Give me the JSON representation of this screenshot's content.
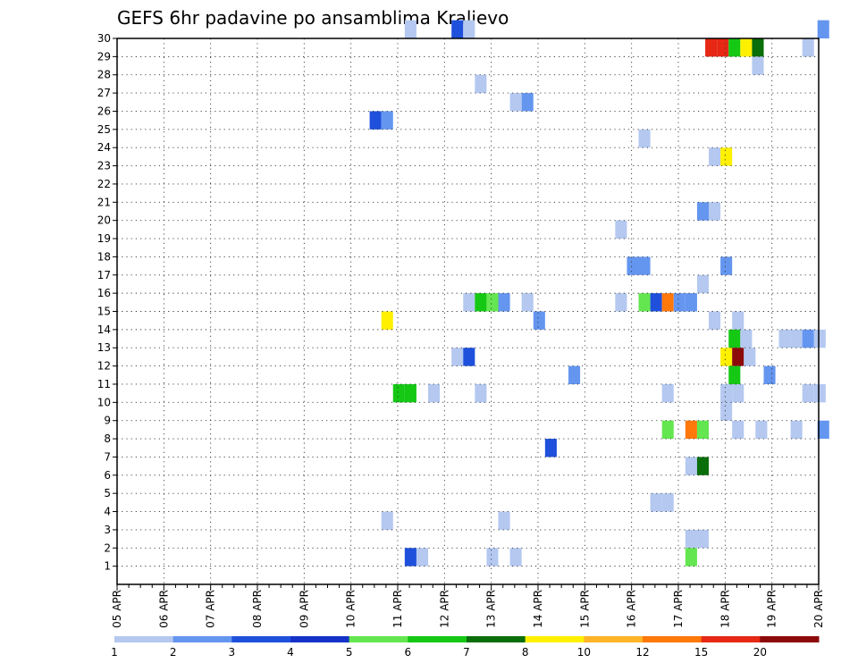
{
  "chart_data": {
    "type": "heatmap",
    "title": "GEFS 6hr padavine po ansamblima Kraljevo",
    "xlabel": "",
    "ylabel": "",
    "x_tick_labels": [
      "05 APR",
      "06 APR",
      "07 APR",
      "08 APR",
      "09 APR",
      "10 APR",
      "11 APR",
      "12 APR",
      "13 APR",
      "14 APR",
      "15 APR",
      "16 APR",
      "17 APR",
      "18 APR",
      "19 APR",
      "20 APR"
    ],
    "x_unit": "6-hour step from 05 APR 00Z",
    "xlim": [
      0,
      60
    ],
    "ylim": [
      0,
      30
    ],
    "y_ticks": [
      1,
      2,
      3,
      4,
      5,
      6,
      7,
      8,
      9,
      10,
      11,
      12,
      13,
      14,
      15,
      16,
      17,
      18,
      19,
      20,
      21,
      22,
      23,
      24,
      25,
      26,
      27,
      28,
      29,
      30
    ],
    "grid": true,
    "colorbar": {
      "labels": [
        "1",
        "2",
        "3",
        "4",
        "5",
        "6",
        "7",
        "8",
        "10",
        "12",
        "15",
        "20"
      ],
      "colors": [
        "#b4c8f0",
        "#6496f0",
        "#1e50dc",
        "#1432c8",
        "#64e650",
        "#14c814",
        "#0a6e0a",
        "#fff000",
        "#ffb428",
        "#ff780a",
        "#e62814",
        "#8c0a0a"
      ]
    },
    "cells": [
      [
        24.6,
        30,
        1
      ],
      [
        28.6,
        30,
        3
      ],
      [
        29.6,
        30,
        1
      ],
      [
        59.9,
        30,
        2
      ],
      [
        50.3,
        29,
        11
      ],
      [
        51.3,
        29,
        11
      ],
      [
        52.3,
        29,
        6
      ],
      [
        53.3,
        29,
        8
      ],
      [
        54.3,
        29,
        7
      ],
      [
        58.6,
        29,
        1
      ],
      [
        54.3,
        28,
        1
      ],
      [
        30.6,
        27,
        1
      ],
      [
        33.6,
        26,
        1
      ],
      [
        34.6,
        26,
        2
      ],
      [
        21.6,
        25,
        3
      ],
      [
        22.6,
        25,
        2
      ],
      [
        44.6,
        24,
        1
      ],
      [
        50.6,
        23,
        1
      ],
      [
        51.6,
        23,
        8
      ],
      [
        49.6,
        20,
        2
      ],
      [
        50.6,
        20,
        1
      ],
      [
        42.6,
        19,
        1
      ],
      [
        43.6,
        17,
        2
      ],
      [
        44.6,
        17,
        2
      ],
      [
        51.6,
        17,
        2
      ],
      [
        49.6,
        16,
        1
      ],
      [
        29.6,
        15,
        1
      ],
      [
        30.6,
        15,
        6
      ],
      [
        31.6,
        15,
        5
      ],
      [
        32.6,
        15,
        2
      ],
      [
        34.6,
        15,
        1
      ],
      [
        42.6,
        15,
        1
      ],
      [
        44.6,
        15,
        5
      ],
      [
        45.6,
        15,
        3
      ],
      [
        46.6,
        15,
        10
      ],
      [
        47.6,
        15,
        2
      ],
      [
        48.6,
        15,
        2
      ],
      [
        22.6,
        14,
        8
      ],
      [
        35.6,
        14,
        2
      ],
      [
        50.6,
        14,
        1
      ],
      [
        52.6,
        14,
        1
      ],
      [
        52.3,
        13,
        6
      ],
      [
        53.3,
        13,
        1
      ],
      [
        56.6,
        13,
        1
      ],
      [
        57.6,
        13,
        1
      ],
      [
        58.6,
        13,
        2
      ],
      [
        59.6,
        13,
        1
      ],
      [
        28.6,
        12,
        1
      ],
      [
        29.6,
        12,
        3
      ],
      [
        51.6,
        12,
        8
      ],
      [
        52.6,
        12,
        12
      ],
      [
        53.6,
        12,
        1
      ],
      [
        38.6,
        11,
        2
      ],
      [
        52.3,
        11,
        6
      ],
      [
        55.3,
        11,
        2
      ],
      [
        23.6,
        10,
        6
      ],
      [
        24.6,
        10,
        6
      ],
      [
        26.6,
        10,
        1
      ],
      [
        30.6,
        10,
        1
      ],
      [
        46.6,
        10,
        1
      ],
      [
        51.6,
        10,
        1
      ],
      [
        52.6,
        10,
        1
      ],
      [
        58.6,
        10,
        1
      ],
      [
        59.6,
        10,
        1
      ],
      [
        51.6,
        9,
        1
      ],
      [
        46.6,
        8,
        5
      ],
      [
        48.6,
        8,
        10
      ],
      [
        49.6,
        8,
        5
      ],
      [
        52.6,
        8,
        1
      ],
      [
        54.6,
        8,
        1
      ],
      [
        57.6,
        8,
        1
      ],
      [
        59.9,
        8,
        2
      ],
      [
        36.6,
        7,
        3
      ],
      [
        48.6,
        6,
        1
      ],
      [
        49.6,
        6,
        7
      ],
      [
        45.6,
        4,
        1
      ],
      [
        46.6,
        4,
        1
      ],
      [
        22.6,
        3,
        1
      ],
      [
        32.6,
        3,
        1
      ],
      [
        48.6,
        2,
        1
      ],
      [
        49.6,
        2,
        1
      ],
      [
        24.6,
        1,
        3
      ],
      [
        25.6,
        1,
        1
      ],
      [
        31.6,
        1,
        1
      ],
      [
        33.6,
        1,
        1
      ],
      [
        48.6,
        1,
        5
      ]
    ]
  }
}
